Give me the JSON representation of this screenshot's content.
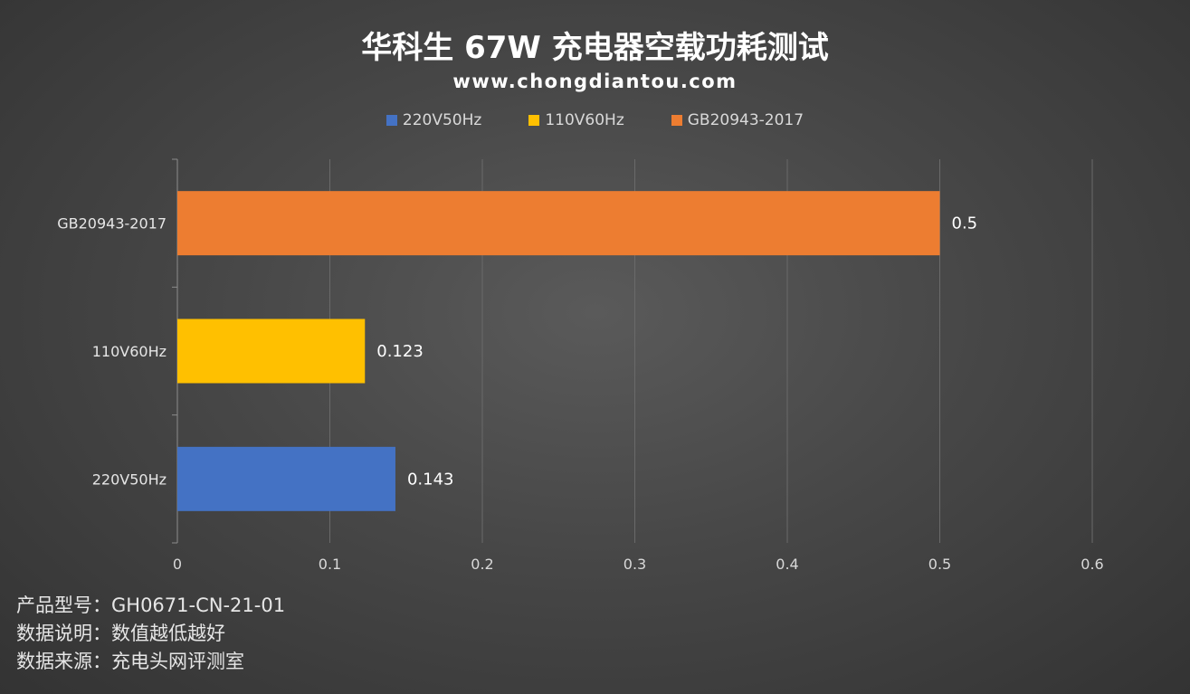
{
  "chart_data": {
    "type": "bar",
    "orientation": "horizontal",
    "title": "华科生 67W 充电器空载功耗测试",
    "subtitle": "www.chongdiantou.com",
    "categories": [
      "220V50Hz",
      "110V60Hz",
      "GB20943-2017"
    ],
    "values": [
      0.143,
      0.123,
      0.5
    ],
    "value_labels": [
      "0.143",
      "0.123",
      "0.5"
    ],
    "bar_colors": [
      "#4472c4",
      "#ffc000",
      "#ed7d31"
    ],
    "legend": [
      {
        "label": "220V50Hz",
        "color": "#4472c4"
      },
      {
        "label": "110V60Hz",
        "color": "#ffc000"
      },
      {
        "label": "GB20943-2017",
        "color": "#ed7d31"
      }
    ],
    "legend_position": "top",
    "xlim": [
      0,
      0.6
    ],
    "xticks": [
      "0",
      "0.1",
      "0.2",
      "0.3",
      "0.4",
      "0.5",
      "0.6"
    ],
    "grid": "vertical"
  },
  "footnotes": [
    "产品型号：GH0671-CN-21-01",
    "数据说明：数值越低越好",
    "数据来源：充电头网评测室"
  ]
}
